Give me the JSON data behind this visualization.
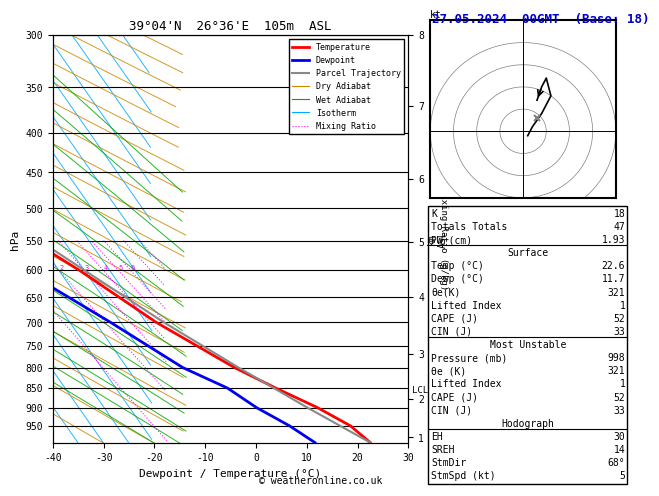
{
  "title_left": "39°04'N  26°36'E  105m  ASL",
  "title_right": "27.05.2024  00GMT  (Base: 18)",
  "xlabel": "Dewpoint / Temperature (°C)",
  "ylabel_left": "hPa",
  "p_min": 300,
  "p_max": 1000,
  "T_min": -40,
  "T_max": 35,
  "skew_factor": 0.75,
  "pressure_lines": [
    300,
    350,
    400,
    450,
    500,
    550,
    600,
    650,
    700,
    750,
    800,
    850,
    900,
    950
  ],
  "km_ticks": [
    1,
    2,
    3,
    4,
    5,
    6,
    7,
    8
  ],
  "km_pressures": [
    980,
    855,
    730,
    598,
    492,
    395,
    305,
    238
  ],
  "lcl_pressure": 855,
  "lcl_label": "LCL",
  "temp_profile_t": [
    22.6,
    21.0,
    17.0,
    11.5,
    6.2,
    -3.0,
    -11.0,
    -22.0,
    -35.0,
    -45.0,
    -55.0
  ],
  "temp_profile_p": [
    998,
    950,
    900,
    850,
    800,
    700,
    600,
    500,
    400,
    350,
    300
  ],
  "dewp_profile_t": [
    11.7,
    9.0,
    5.0,
    2.0,
    -4.0,
    -12.0,
    -22.0,
    -30.0,
    -26.0,
    -22.0,
    -17.0
  ],
  "dewp_profile_p": [
    998,
    950,
    900,
    850,
    800,
    700,
    600,
    550,
    500,
    450,
    400
  ],
  "dewp_profile_t2": [
    -40.0,
    -55.0,
    -65.0
  ],
  "dewp_profile_p2": [
    350,
    320,
    300
  ],
  "parcel_t": [
    22.6,
    15.0,
    7.0,
    -1.5,
    -10.0,
    -20.0,
    -31.0,
    -44.0,
    -57.0
  ],
  "parcel_p": [
    998,
    900,
    800,
    700,
    600,
    500,
    400,
    350,
    300
  ],
  "mixing_ratios": [
    1,
    2,
    3,
    4,
    5,
    6,
    8,
    10,
    15,
    20,
    25
  ],
  "iso_temps": [
    -60,
    -55,
    -50,
    -45,
    -40,
    -35,
    -30,
    -25,
    -20,
    -15,
    -10,
    -5,
    0,
    5,
    10,
    15,
    20,
    25,
    30,
    35,
    40,
    45,
    50
  ],
  "dry_adiabat_T0s": [
    -40,
    -30,
    -20,
    -10,
    0,
    10,
    20,
    30,
    40,
    50,
    60,
    70,
    80,
    90,
    100,
    110,
    120,
    130,
    140,
    150,
    160
  ],
  "moist_adiabat_T0s": [
    -20,
    -15,
    -10,
    -5,
    0,
    5,
    10,
    15,
    20,
    25,
    30,
    35,
    40
  ],
  "temp_color": "#ff0000",
  "dewp_color": "#0000ee",
  "parcel_color": "#888888",
  "dry_adiabat_color": "#cc8800",
  "wet_adiabat_color": "#00aa00",
  "isotherm_color": "#00aaff",
  "mixing_color": "#ff00ff",
  "table_rows": [
    {
      "label": "K",
      "value": "18",
      "header": false
    },
    {
      "label": "Totals Totals",
      "value": "47",
      "header": false
    },
    {
      "label": "PW (cm)",
      "value": "1.93",
      "header": false
    },
    {
      "label": "Surface",
      "value": "",
      "header": true
    },
    {
      "label": "Temp (°C)",
      "value": "22.6",
      "header": false
    },
    {
      "label": "Dewp (°C)",
      "value": "11.7",
      "header": false
    },
    {
      "label": "θe(K)",
      "value": "321",
      "header": false
    },
    {
      "label": "Lifted Index",
      "value": "1",
      "header": false
    },
    {
      "label": "CAPE (J)",
      "value": "52",
      "header": false
    },
    {
      "label": "CIN (J)",
      "value": "33",
      "header": false
    },
    {
      "label": "Most Unstable",
      "value": "",
      "header": true
    },
    {
      "label": "Pressure (mb)",
      "value": "998",
      "header": false
    },
    {
      "label": "θe (K)",
      "value": "321",
      "header": false
    },
    {
      "label": "Lifted Index",
      "value": "1",
      "header": false
    },
    {
      "label": "CAPE (J)",
      "value": "52",
      "header": false
    },
    {
      "label": "CIN (J)",
      "value": "33",
      "header": false
    },
    {
      "label": "Hodograph",
      "value": "",
      "header": true
    },
    {
      "label": "EH",
      "value": "30",
      "header": false
    },
    {
      "label": "SREH",
      "value": "14",
      "header": false
    },
    {
      "label": "StmDir",
      "value": "68°",
      "header": false
    },
    {
      "label": "StmSpd (kt)",
      "value": "5",
      "header": false
    }
  ],
  "section_dividers": [
    3,
    10,
    17
  ],
  "hodo_u": [
    1,
    2,
    4,
    6,
    5,
    4,
    3
  ],
  "hodo_v": [
    -1,
    1,
    4,
    8,
    12,
    10,
    7
  ],
  "storm_u": 3,
  "storm_v": 3,
  "legend_items": [
    {
      "label": "Temperature",
      "color": "#ff0000",
      "lw": 2.0,
      "ls": "-"
    },
    {
      "label": "Dewpoint",
      "color": "#0000ee",
      "lw": 2.0,
      "ls": "-"
    },
    {
      "label": "Parcel Trajectory",
      "color": "#888888",
      "lw": 1.5,
      "ls": "-"
    },
    {
      "label": "Dry Adiabat",
      "color": "#cc8800",
      "lw": 0.8,
      "ls": "-"
    },
    {
      "label": "Wet Adiabat",
      "color": "#00aa00",
      "lw": 0.8,
      "ls": "-"
    },
    {
      "label": "Isotherm",
      "color": "#00aaff",
      "lw": 0.8,
      "ls": "-"
    },
    {
      "label": "Mixing Ratio",
      "color": "#ff00ff",
      "lw": 0.8,
      "ls": ":"
    }
  ],
  "copyright": "© weatheronline.co.uk"
}
